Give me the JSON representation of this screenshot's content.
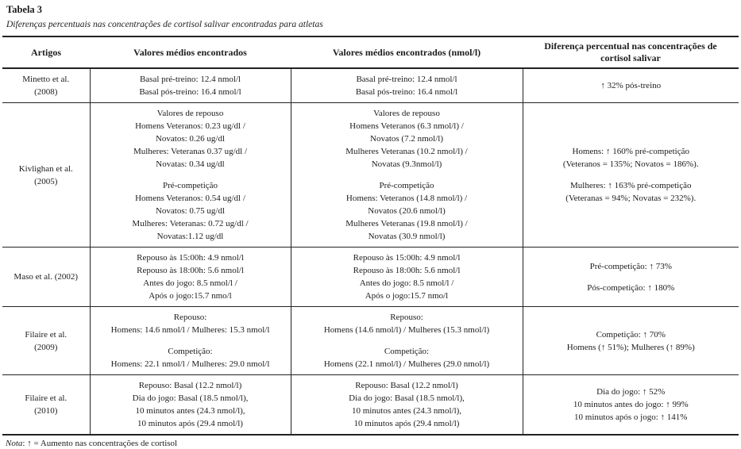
{
  "title": "Tabela 3",
  "subtitle": "Diferenças percentuais nas concentrações de cortisol salivar encontradas para atletas",
  "colors": {
    "text": "#1c1c1c",
    "border": "#222222",
    "background": "#ffffff"
  },
  "table": {
    "headers": [
      "Artigos",
      "Valores médios encontrados",
      "Valores médios encontrados (nmol/l)",
      "Diferença percentual nas concentrações de cortisol salivar"
    ],
    "rows": [
      {
        "artigo": [
          "Minetto et al.",
          "(2008)"
        ],
        "valores": [
          "Basal pré-treino: 12.4 nmol/l",
          "Basal pós-treino: 16.4 nmol/l"
        ],
        "valores_nmol": [
          "Basal pré-treino: 12.4 nmol/l",
          "Basal pós-treino: 16.4 nmol/l"
        ],
        "diferenca": [
          "↑ 32% pós-treino"
        ]
      },
      {
        "artigo": [
          "Kivlighan et al.",
          "(2005)"
        ],
        "valores": [
          "Valores de repouso",
          "Homens Veteranos: 0.23 ug/dl /",
          "Novatos: 0.26 ug/dl",
          "Mulheres: Veteranas 0.37 ug/dl /",
          "Novatas: 0.34 ug/dl",
          "",
          "Pré-competição",
          "Homens Veteranos: 0.54 ug/dl /",
          "Novatos: 0.75 ug/dl",
          "Mulheres: Veteranas: 0.72 ug/dl /",
          "Novatas:1.12 ug/dl"
        ],
        "valores_nmol": [
          "Valores de repouso",
          "Homens Veteranos (6.3 nmol/l) /",
          "Novatos (7.2 nmol/l)",
          "Mulheres Veteranas (10.2 nmol/l) /",
          "Novatas (9.3nmol/l)",
          "",
          "Pré-competição",
          "Homens: Veteranos (14.8 nmol/l) /",
          "Novatos (20.6 nmol/l)",
          "Mulheres Veteranas (19.8 nmol/l) /",
          "Novatas (30.9 nmol/l)"
        ],
        "diferenca": [
          "Homens: ↑ 160% pré-competição",
          "(Veteranos = 135%; Novatos = 186%).",
          "",
          "Mulheres: ↑ 163% pré-competição",
          "(Veteranas = 94%; Novatas = 232%)."
        ]
      },
      {
        "artigo": [
          "Maso et al. (2002)"
        ],
        "valores": [
          "Repouso às 15:00h: 4.9 nmol/l",
          "Repouso às 18:00h: 5.6 nmol/l",
          "Antes do jogo: 8.5 nmol/l /",
          "Após o jogo:15.7 nmo/l"
        ],
        "valores_nmol": [
          "Repouso às 15:00h: 4.9 nmol/l",
          "Repouso às 18:00h: 5.6 nmol/l",
          "Antes do jogo: 8.5 nmol/l /",
          "Após o jogo:15.7 nmo/l"
        ],
        "diferenca": [
          "Pré-competição: ↑ 73%",
          "",
          "Pós-competição: ↑ 180%"
        ]
      },
      {
        "artigo": [
          "Filaire et al.",
          "(2009)"
        ],
        "valores": [
          "Repouso:",
          "Homens: 14.6 nmol/l / Mulheres: 15.3 nmol/l",
          "",
          "Competição:",
          "Homens: 22.1 nmol/l / Mulheres: 29.0 nmol/l"
        ],
        "valores_nmol": [
          "Repouso:",
          "Homens (14.6 nmol/l) / Mulheres (15.3 nmol/l)",
          "",
          "Competição:",
          "Homens (22.1 nmol/l) / Mulheres (29.0 nmol/l)"
        ],
        "diferenca": [
          "Competição: ↑ 70%",
          "Homens (↑ 51%); Mulheres (↑ 89%)"
        ]
      },
      {
        "artigo": [
          "Filaire et al.",
          "(2010)"
        ],
        "valores": [
          "Repouso: Basal (12.2 nmol/l)",
          "Dia do jogo: Basal (18.5 nmol/l),",
          "10 minutos antes (24.3 nmol/l),",
          "10 minutos após (29.4 nmol/l)"
        ],
        "valores_nmol": [
          "Repouso: Basal (12.2 nmol/l)",
          "Dia do jogo: Basal (18.5 nmol/l),",
          "10 minutos antes (24.3 nmol/l),",
          "10 minutos após (29.4 nmol/l)"
        ],
        "diferenca": [
          "Dia do jogo: ↑ 52%",
          "10 minutos antes do jogo: ↑ 99%",
          "10 minutos após o jogo: ↑ 141%"
        ]
      }
    ]
  },
  "note": {
    "label": "Nota",
    "text": ": ↑ = Aumento nas concentrações de cortisol"
  }
}
